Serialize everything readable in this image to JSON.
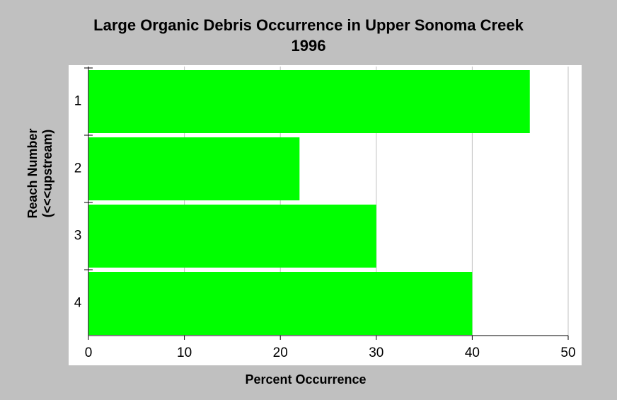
{
  "chart_data": {
    "type": "bar",
    "orientation": "horizontal",
    "title": "Large Organic Debris Occurrence in Upper Sonoma Creek",
    "subtitle": "1996",
    "xlabel": "Percent Occurrence",
    "ylabel": [
      "Reach Number",
      "(<<<upstream)"
    ],
    "categories": [
      "1",
      "2",
      "3",
      "4"
    ],
    "values": [
      46,
      22,
      30,
      40
    ],
    "xlim": [
      0,
      50
    ],
    "xticks": [
      "0",
      "10",
      "20",
      "30",
      "40",
      "50"
    ],
    "grid": true,
    "colors": {
      "bar": "#00ff00",
      "plot_bg": "#ffffff",
      "page_bg": "#c0c0c0",
      "grid": "#c0c0c0"
    }
  }
}
